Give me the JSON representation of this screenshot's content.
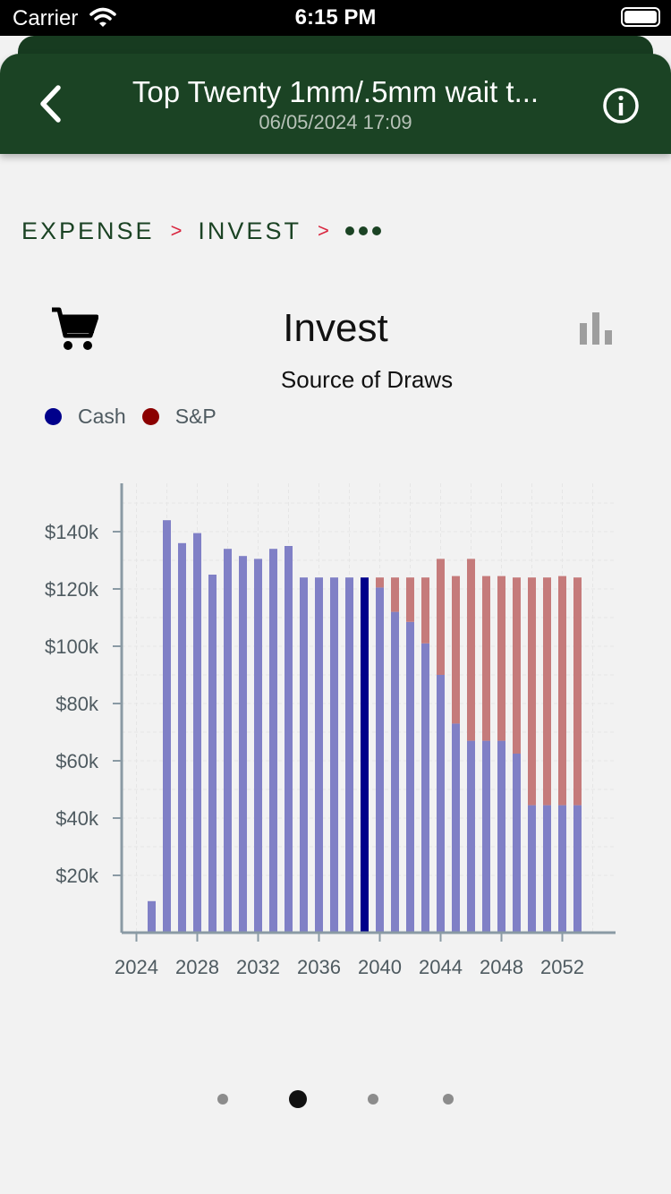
{
  "status": {
    "carrier": "Carrier",
    "time": "6:15 PM"
  },
  "nav": {
    "title": "Top Twenty 1mm/.5mm wait t...",
    "subtitle": "06/05/2024 17:09"
  },
  "breadcrumb": {
    "items": [
      "EXPENSE",
      "INVEST"
    ],
    "separator": ">"
  },
  "chart_title": "Invest",
  "chart_subtitle": "Source of Draws",
  "colors": {
    "header": "#1b4324",
    "accent": "#d9263f",
    "cash": "#00008b",
    "sp": "#8b0000",
    "cash_bar": "#8080c6",
    "sp_bar": "#c57b7b"
  },
  "icons": {
    "back": "chevron-left-icon",
    "info": "info-icon",
    "cart": "shopping-cart-icon",
    "chart_toggle": "bar-chart-icon",
    "more": "more-horizontal-icon"
  },
  "chart_data": {
    "type": "bar",
    "stacked": true,
    "x": [
      2025,
      2026,
      2027,
      2028,
      2029,
      2030,
      2031,
      2032,
      2033,
      2034,
      2035,
      2036,
      2037,
      2038,
      2039,
      2040,
      2041,
      2042,
      2043,
      2044,
      2045,
      2046,
      2047,
      2048,
      2049,
      2050,
      2051,
      2052,
      2053
    ],
    "series": [
      {
        "name": "Cash",
        "values": [
          11000,
          144000,
          136000,
          139500,
          125000,
          134000,
          131500,
          130500,
          134000,
          135000,
          124000,
          124000,
          124000,
          124000,
          124000,
          120500,
          112000,
          108500,
          101000,
          90000,
          73000,
          67000,
          67000,
          67000,
          62500,
          44500,
          44500,
          44500,
          44500
        ]
      },
      {
        "name": "S&P",
        "values": [
          0,
          0,
          0,
          0,
          0,
          0,
          0,
          0,
          0,
          0,
          0,
          0,
          0,
          0,
          0,
          3500,
          12000,
          15500,
          23000,
          40500,
          51500,
          63500,
          57500,
          57500,
          61500,
          79500,
          79500,
          80000,
          79500
        ]
      }
    ],
    "highlight_year": 2039,
    "x_ticks": [
      "2024",
      "2028",
      "2032",
      "2036",
      "2040",
      "2044",
      "2048",
      "2052"
    ],
    "y_ticks": [
      "$20k",
      "$40k",
      "$60k",
      "$80k",
      "$100k",
      "$120k",
      "$140k"
    ],
    "ylim": [
      0,
      156000
    ],
    "grid": true,
    "legend": "top-left"
  },
  "pager": {
    "count": 4,
    "active": 1
  }
}
